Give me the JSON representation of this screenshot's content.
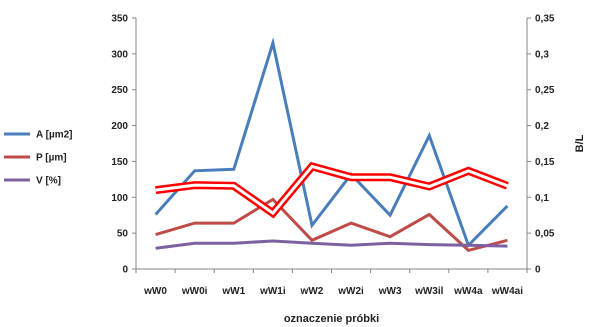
{
  "chart_data": {
    "type": "line",
    "title": "",
    "xlabel": "oznaczenie próbki",
    "ylabel_left": "",
    "ylabel_right": "B/L",
    "categories": [
      "wW0",
      "wW0i",
      "wW1",
      "wW1i",
      "wW2",
      "wW2i",
      "wW3",
      "wW3il",
      "wW4a",
      "wW4ai"
    ],
    "y_left": {
      "min": 0,
      "max": 350,
      "step": 50,
      "ticks": [
        "0",
        "50",
        "100",
        "150",
        "200",
        "250",
        "300",
        "350"
      ]
    },
    "y_right": {
      "min": 0,
      "max": 0.35,
      "step": 0.05,
      "ticks": [
        "0",
        "0,05",
        "0,1",
        "0,15",
        "0,2",
        "0,25",
        "0,3",
        "0,35"
      ]
    },
    "grid": false,
    "legend_position": "left",
    "series": [
      {
        "name": "A [µm2]",
        "axis": "left",
        "color": "#4a7ebb",
        "style": "solid",
        "values": [
          76,
          137,
          139,
          315,
          61,
          132,
          75,
          186,
          33,
          88
        ]
      },
      {
        "name": "P [µm]",
        "axis": "left",
        "color": "#be4b48",
        "style": "solid",
        "values": [
          48,
          64,
          64,
          97,
          40,
          64,
          45,
          76,
          26,
          40
        ]
      },
      {
        "name": "V [%]",
        "axis": "left",
        "color": "#7d60a0",
        "style": "solid",
        "values": [
          29,
          36,
          36,
          39,
          36,
          33,
          36,
          34,
          33,
          32
        ]
      },
      {
        "name": "",
        "axis": "right",
        "color": "#ff0000",
        "style": "double",
        "values": [
          0.11,
          0.117,
          0.116,
          0.078,
          0.143,
          0.128,
          0.128,
          0.115,
          0.137,
          0.116
        ]
      }
    ]
  }
}
